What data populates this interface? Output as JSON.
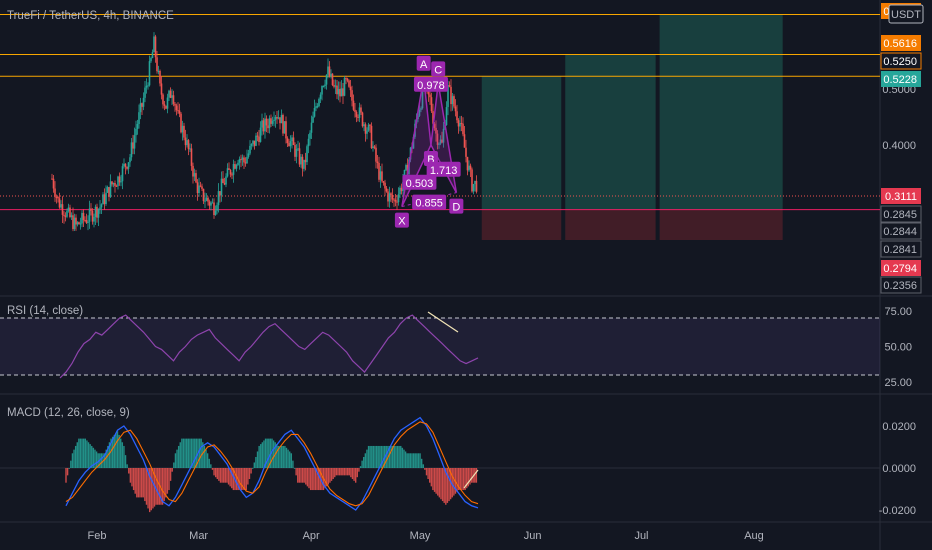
{
  "header": {
    "title": "TrueFi / TetherUS, 4h, BINANCE",
    "currency": "USDT"
  },
  "colors": {
    "background": "#131722",
    "up": "#26a69a",
    "down": "#ef5350",
    "orange_line": "#f7a600",
    "magenta_line": "#e91e63",
    "pattern": "#9c27b0",
    "rsi": "#7e57c2",
    "macd": "#2962ff",
    "signal": "#ff6d00",
    "target_fill": "#1b4d48",
    "stop_fill": "#4a1f28"
  },
  "chart_data": [
    {
      "type": "candlestick",
      "title": "TrueFi / TetherUS, 4h, BINANCE",
      "x_ticks": [
        "Feb",
        "Mar",
        "Apr",
        "May",
        "Jun",
        "Jul",
        "Aug"
      ],
      "price_ticks": [
        {
          "value": 0.5,
          "label": "0.5000"
        },
        {
          "value": 0.4,
          "label": "0.4000"
        }
      ],
      "price_labels": [
        {
          "label": "0.6331",
          "style": "orange"
        },
        {
          "label": "0.5616",
          "style": "orange"
        },
        {
          "label": "0.5250",
          "style": "outline"
        },
        {
          "label": "0.5228",
          "style": "teal"
        },
        {
          "label": "0.3111",
          "style": "red"
        },
        {
          "label": "0.2845",
          "style": "plain"
        },
        {
          "label": "0.2844",
          "style": "plain"
        },
        {
          "label": "0.2841",
          "style": "plain"
        },
        {
          "label": "0.2794",
          "style": "red"
        },
        {
          "label": "0.2356",
          "style": "plain"
        }
      ],
      "horizontal_levels": [
        {
          "value": 0.6331,
          "color": "orange"
        },
        {
          "value": 0.5616,
          "color": "orange"
        },
        {
          "value": 0.5228,
          "color": "orange"
        },
        {
          "value": 0.2845,
          "color": "magenta"
        }
      ],
      "pattern_points": [
        {
          "name": "X",
          "date": "2021-04-26",
          "price": 0.29
        },
        {
          "name": "A",
          "date": "2021-05-02",
          "price": 0.52
        },
        {
          "name": "B",
          "date": "2021-05-04",
          "price": 0.4
        },
        {
          "name": "C",
          "date": "2021-05-06",
          "price": 0.51
        },
        {
          "name": "D",
          "date": "2021-05-11",
          "price": 0.315
        }
      ],
      "pattern_ratios": [
        "0.978",
        "0.503",
        "1.713",
        "0.855"
      ],
      "targets": [
        {
          "from": "2021-05-18",
          "to": "2021-06-10",
          "top": 0.5228
        },
        {
          "from": "2021-06-10",
          "to": "2021-07-06",
          "top": 0.5616
        },
        {
          "from": "2021-07-06",
          "to": "2021-08-10",
          "top": 0.6331
        }
      ],
      "stop_zone": {
        "top": 0.2845,
        "bottom": 0.2356
      },
      "series_closes": [
        0.34,
        0.3,
        0.285,
        0.27,
        0.255,
        0.265,
        0.27,
        0.28,
        0.29,
        0.31,
        0.33,
        0.34,
        0.36,
        0.38,
        0.43,
        0.47,
        0.52,
        0.58,
        0.5,
        0.47,
        0.5,
        0.45,
        0.42,
        0.38,
        0.33,
        0.31,
        0.3,
        0.29,
        0.32,
        0.34,
        0.36,
        0.38,
        0.37,
        0.39,
        0.41,
        0.43,
        0.44,
        0.46,
        0.45,
        0.42,
        0.4,
        0.38,
        0.36,
        0.42,
        0.47,
        0.51,
        0.53,
        0.5,
        0.49,
        0.51,
        0.48,
        0.46,
        0.44,
        0.42,
        0.37,
        0.33,
        0.31,
        0.3,
        0.32,
        0.35,
        0.4,
        0.46,
        0.5,
        0.48,
        0.42,
        0.4,
        0.5,
        0.47,
        0.44,
        0.38,
        0.33
      ]
    },
    {
      "type": "line",
      "title": "RSI (14, close)",
      "y_ticks": [
        "75.00",
        "50.00",
        "25.00"
      ],
      "bands": [
        70,
        30
      ],
      "values": [
        28,
        32,
        38,
        46,
        52,
        55,
        60,
        58,
        62,
        66,
        70,
        72,
        68,
        64,
        60,
        55,
        50,
        48,
        44,
        40,
        46,
        50,
        55,
        58,
        60,
        62,
        56,
        52,
        48,
        44,
        40,
        46,
        50,
        55,
        60,
        64,
        66,
        62,
        58,
        54,
        50,
        48,
        52,
        56,
        60,
        58,
        54,
        50,
        46,
        40,
        36,
        32,
        38,
        44,
        50,
        56,
        60,
        66,
        70,
        72,
        68,
        64,
        60,
        56,
        52,
        48,
        44,
        40,
        38,
        40,
        42
      ]
    },
    {
      "type": "bar",
      "title": "MACD (12, 26, close, 9)",
      "y_ticks": [
        "0.0200",
        "0.0000",
        "-0.0200"
      ],
      "macd": [
        -0.018,
        -0.012,
        -0.006,
        -0.002,
        0.001,
        0.003,
        0.006,
        0.012,
        0.018,
        0.02,
        0.016,
        0.01,
        0.004,
        -0.004,
        -0.01,
        -0.016,
        -0.018,
        -0.014,
        -0.008,
        -0.002,
        0.004,
        0.01,
        0.012,
        0.01,
        0.006,
        0.002,
        -0.004,
        -0.01,
        -0.014,
        -0.012,
        -0.006,
        0.002,
        0.008,
        0.012,
        0.016,
        0.018,
        0.014,
        0.01,
        0.004,
        -0.002,
        -0.008,
        -0.012,
        -0.014,
        -0.016,
        -0.018,
        -0.02,
        -0.016,
        -0.01,
        -0.004,
        0.002,
        0.008,
        0.014,
        0.018,
        0.02,
        0.022,
        0.024,
        0.02,
        0.014,
        0.006,
        -0.002,
        -0.008,
        -0.012,
        -0.016,
        -0.018,
        -0.019
      ],
      "signal": [
        -0.016,
        -0.014,
        -0.01,
        -0.006,
        -0.002,
        0.001,
        0.004,
        0.008,
        0.013,
        0.017,
        0.018,
        0.014,
        0.008,
        0.002,
        -0.005,
        -0.011,
        -0.015,
        -0.016,
        -0.012,
        -0.006,
        0.0,
        0.006,
        0.01,
        0.011,
        0.008,
        0.004,
        -0.001,
        -0.007,
        -0.011,
        -0.012,
        -0.009,
        -0.002,
        0.004,
        0.009,
        0.013,
        0.016,
        0.016,
        0.012,
        0.007,
        0.001,
        -0.005,
        -0.01,
        -0.013,
        -0.015,
        -0.017,
        -0.018,
        -0.017,
        -0.013,
        -0.007,
        -0.001,
        0.005,
        0.011,
        0.015,
        0.018,
        0.02,
        0.022,
        0.021,
        0.017,
        0.01,
        0.003,
        -0.004,
        -0.009,
        -0.013,
        -0.016,
        -0.017
      ]
    }
  ]
}
